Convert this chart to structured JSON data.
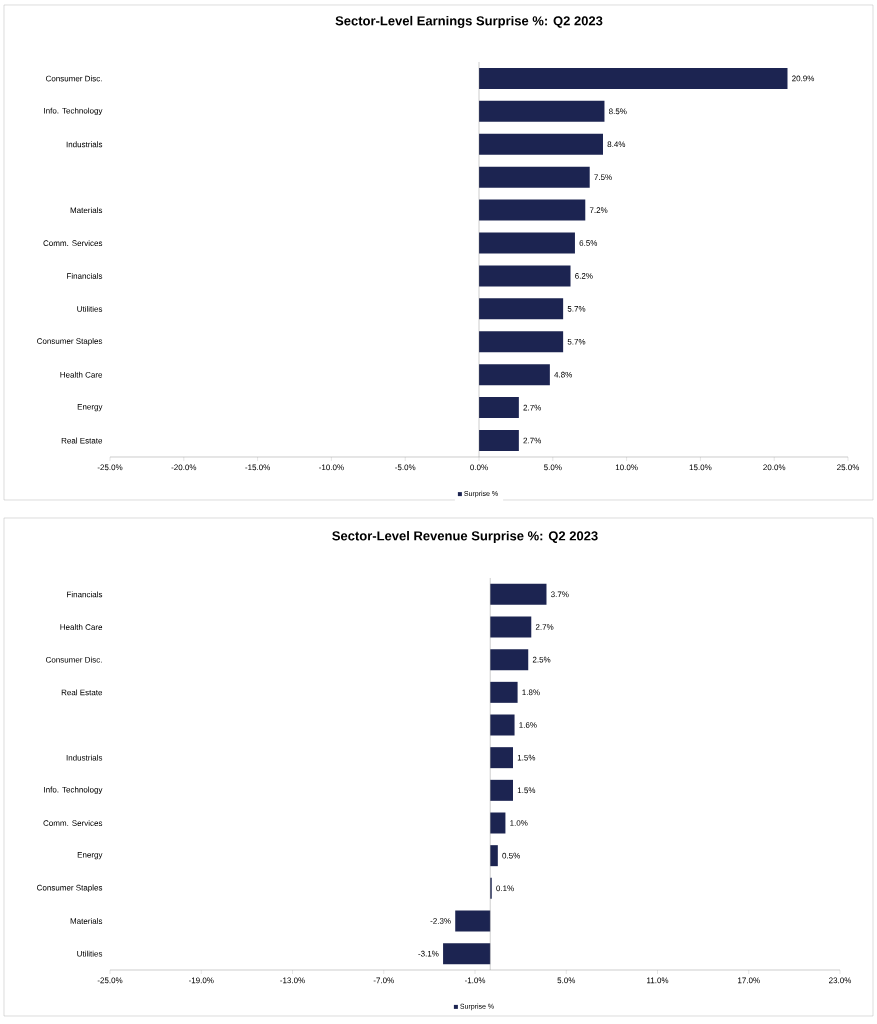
{
  "chart_data": [
    {
      "type": "bar",
      "orientation": "horizontal",
      "title": "Sector-Level Earnings Surprise %: Q2 2023",
      "categories": [
        "Consumer Disc.",
        "Info. Technology",
        "Industrials",
        null,
        "Materials",
        "Comm. Services",
        "Financials",
        "Utilities",
        "Consumer Staples",
        "Health Care",
        "Energy",
        "Real Estate"
      ],
      "series": [
        {
          "name": "Surprise %",
          "color": "#1c2451",
          "values": [
            20.9,
            8.5,
            8.4,
            7.5,
            7.2,
            6.5,
            6.2,
            5.7,
            5.7,
            4.8,
            2.7,
            2.7
          ],
          "value_labels": [
            "20.9%",
            "8.5%",
            "8.4%",
            "7.5%",
            "7.2%",
            "6.5%",
            "6.2%",
            "5.7%",
            "5.7%",
            "4.8%",
            "2.7%",
            "2.7%"
          ]
        }
      ],
      "xlim": [
        -25,
        25
      ],
      "xticks": [
        {
          "value": -25,
          "label": "-25.0%"
        },
        {
          "value": -20,
          "label": "-20.0%"
        },
        {
          "value": -15,
          "label": "-15.0%"
        },
        {
          "value": -10,
          "label": "-10.0%"
        },
        {
          "value": -5,
          "label": "-5.0%"
        },
        {
          "value": 0,
          "label": "0.0%"
        },
        {
          "value": 5,
          "label": "5.0%"
        },
        {
          "value": 10,
          "label": "10.0%"
        },
        {
          "value": 15,
          "label": "15.0%"
        },
        {
          "value": 20,
          "label": "20.0%"
        },
        {
          "value": 25,
          "label": "25.0%"
        }
      ],
      "legend": "bottom"
    },
    {
      "type": "bar",
      "orientation": "horizontal",
      "title": "Sector-Level Revenue Surprise %: Q2 2023",
      "categories": [
        "Financials",
        "Health Care",
        "Consumer Disc.",
        "Real Estate",
        null,
        "Industrials",
        "Info. Technology",
        "Comm. Services",
        "Energy",
        "Consumer Staples",
        "Materials",
        "Utilities"
      ],
      "series": [
        {
          "name": "Surprise %",
          "color": "#1c2451",
          "values": [
            3.7,
            2.7,
            2.5,
            1.8,
            1.6,
            1.5,
            1.5,
            1.0,
            0.5,
            0.1,
            -2.3,
            -3.1
          ],
          "value_labels": [
            "3.7%",
            "2.7%",
            "2.5%",
            "1.8%",
            "1.6%",
            "1.5%",
            "1.5%",
            "1.0%",
            "0.5%",
            "0.1%",
            "-2.3%",
            "-3.1%"
          ]
        }
      ],
      "xlim": [
        -25,
        23
      ],
      "xticks": [
        {
          "value": -25,
          "label": "-25.0%"
        },
        {
          "value": -19,
          "label": "-19.0%"
        },
        {
          "value": -13,
          "label": "-13.0%"
        },
        {
          "value": -7,
          "label": "-7.0%"
        },
        {
          "value": -1,
          "label": "-1.0%"
        },
        {
          "value": 5,
          "label": "5.0%"
        },
        {
          "value": 11,
          "label": "11.0%"
        },
        {
          "value": 17,
          "label": "17.0%"
        },
        {
          "value": 23,
          "label": "23.0%"
        }
      ],
      "legend": "bottom"
    }
  ]
}
